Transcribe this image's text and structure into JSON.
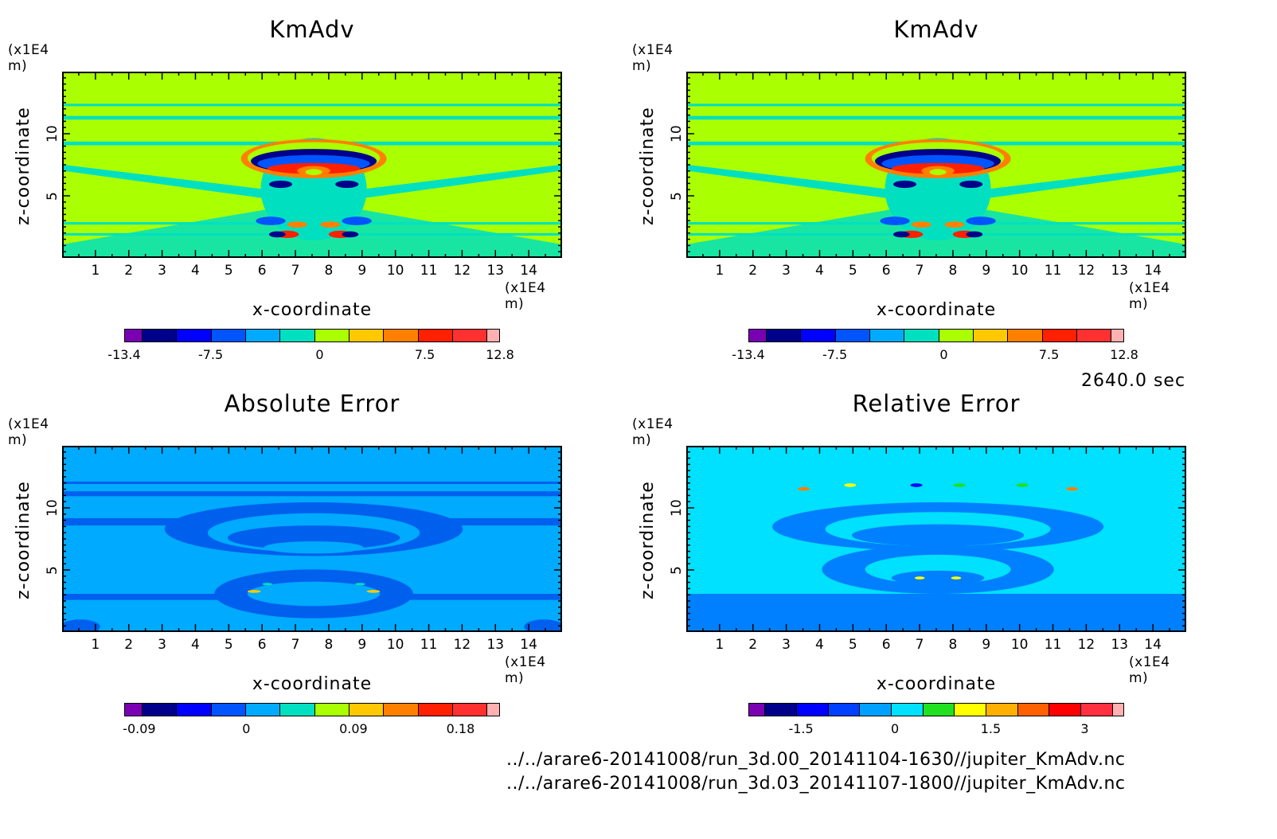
{
  "time_label": "2640.0 sec",
  "files": [
    "../../arare6-20141008/run_3d.00_20141104-1630//jupiter_KmAdv.nc",
    "../../arare6-20141008/run_3d.03_20141107-1800//jupiter_KmAdv.nc"
  ],
  "chart_data": [
    {
      "type": "heatmap",
      "title": "KmAdv",
      "xlabel": "x-coordinate",
      "ylabel": "z-coordinate",
      "x_unit": "(x1E4 m)",
      "y_unit": "(x1E4 m)",
      "xlim": [
        0,
        15
      ],
      "ylim": [
        0,
        15
      ],
      "x_ticks": [
        "1",
        "2",
        "3",
        "4",
        "5",
        "6",
        "7",
        "8",
        "9",
        "10",
        "11",
        "12",
        "13",
        "14"
      ],
      "y_ticks": [
        "5",
        "10"
      ],
      "colorbar_ticks": [
        "-13.4",
        "-7.5",
        "0",
        "7.5",
        "12.8"
      ],
      "colorbar_colors": [
        "#7a00b4",
        "#00008b",
        "#0000ff",
        "#0055ff",
        "#00aaff",
        "#00e0c0",
        "#aaff00",
        "#ffc800",
        "#ff8000",
        "#ff2000",
        "#ff3030",
        "#ffb0b0"
      ],
      "background_color": "#aaff00"
    },
    {
      "type": "heatmap",
      "title": "KmAdv",
      "xlabel": "x-coordinate",
      "ylabel": "z-coordinate",
      "x_unit": "(x1E4 m)",
      "y_unit": "(x1E4 m)",
      "xlim": [
        0,
        15
      ],
      "ylim": [
        0,
        15
      ],
      "x_ticks": [
        "1",
        "2",
        "3",
        "4",
        "5",
        "6",
        "7",
        "8",
        "9",
        "10",
        "11",
        "12",
        "13",
        "14"
      ],
      "y_ticks": [
        "5",
        "10"
      ],
      "colorbar_ticks": [
        "-13.4",
        "-7.5",
        "0",
        "7.5",
        "12.8"
      ],
      "colorbar_colors": [
        "#7a00b4",
        "#00008b",
        "#0000ff",
        "#0055ff",
        "#00aaff",
        "#00e0c0",
        "#aaff00",
        "#ffc800",
        "#ff8000",
        "#ff2000",
        "#ff3030",
        "#ffb0b0"
      ],
      "background_color": "#aaff00"
    },
    {
      "type": "heatmap",
      "title": "Absolute Error",
      "xlabel": "x-coordinate",
      "ylabel": "z-coordinate",
      "x_unit": "(x1E4 m)",
      "y_unit": "(x1E4 m)",
      "xlim": [
        0,
        15
      ],
      "ylim": [
        0,
        15
      ],
      "x_ticks": [
        "1",
        "2",
        "3",
        "4",
        "5",
        "6",
        "7",
        "8",
        "9",
        "10",
        "11",
        "12",
        "13",
        "14"
      ],
      "y_ticks": [
        "5",
        "10"
      ],
      "colorbar_ticks": [
        "-0.09",
        "0",
        "0.09",
        "0.18"
      ],
      "colorbar_colors": [
        "#7a00b4",
        "#00008b",
        "#0000ff",
        "#0055ff",
        "#00aaff",
        "#00e0c0",
        "#aaff00",
        "#ffc800",
        "#ff8000",
        "#ff2000",
        "#ff3030",
        "#ffb0b0"
      ],
      "background_color": "#00aaff"
    },
    {
      "type": "heatmap",
      "title": "Relative Error",
      "xlabel": "x-coordinate",
      "ylabel": "z-coordinate",
      "x_unit": "(x1E4 m)",
      "y_unit": "(x1E4 m)",
      "xlim": [
        0,
        15
      ],
      "ylim": [
        0,
        15
      ],
      "x_ticks": [
        "1",
        "2",
        "3",
        "4",
        "5",
        "6",
        "7",
        "8",
        "9",
        "10",
        "11",
        "12",
        "13",
        "14"
      ],
      "y_ticks": [
        "5",
        "10"
      ],
      "colorbar_ticks": [
        "-1.5",
        "0",
        "1.5",
        "3"
      ],
      "colorbar_colors": [
        "#7a00b4",
        "#00008b",
        "#0000ff",
        "#0040ff",
        "#00a0ff",
        "#00e0ff",
        "#20e020",
        "#ffff00",
        "#ffb000",
        "#ff6000",
        "#ff0000",
        "#ff3040",
        "#ffb0b0"
      ],
      "background_color": "#00e0ff"
    }
  ]
}
